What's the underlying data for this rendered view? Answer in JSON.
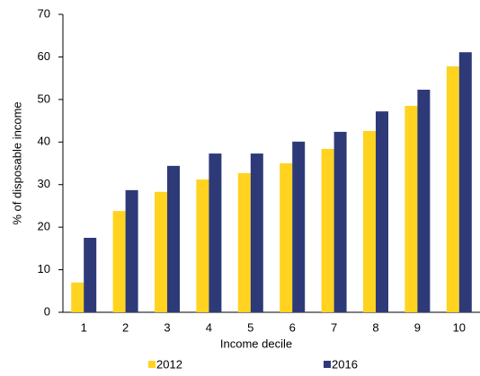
{
  "chart_data": {
    "type": "bar",
    "categories": [
      "1",
      "2",
      "3",
      "4",
      "5",
      "6",
      "7",
      "8",
      "9",
      "10"
    ],
    "series": [
      {
        "name": "2012",
        "color": "#ffd320",
        "values": [
          7.0,
          23.8,
          28.3,
          31.2,
          32.7,
          35.0,
          38.4,
          42.6,
          48.5,
          57.8
        ]
      },
      {
        "name": "2016",
        "color": "#2e3a78",
        "values": [
          17.5,
          28.7,
          34.4,
          37.3,
          37.3,
          40.1,
          42.4,
          47.2,
          52.3,
          61.1
        ]
      }
    ],
    "x_label": "Income decile",
    "y_label": "% of disposable income",
    "ylim": [
      0,
      70
    ],
    "yticks": [
      0,
      10,
      20,
      30,
      40,
      50,
      60,
      70
    ],
    "grid": false,
    "legend": "bottom"
  }
}
